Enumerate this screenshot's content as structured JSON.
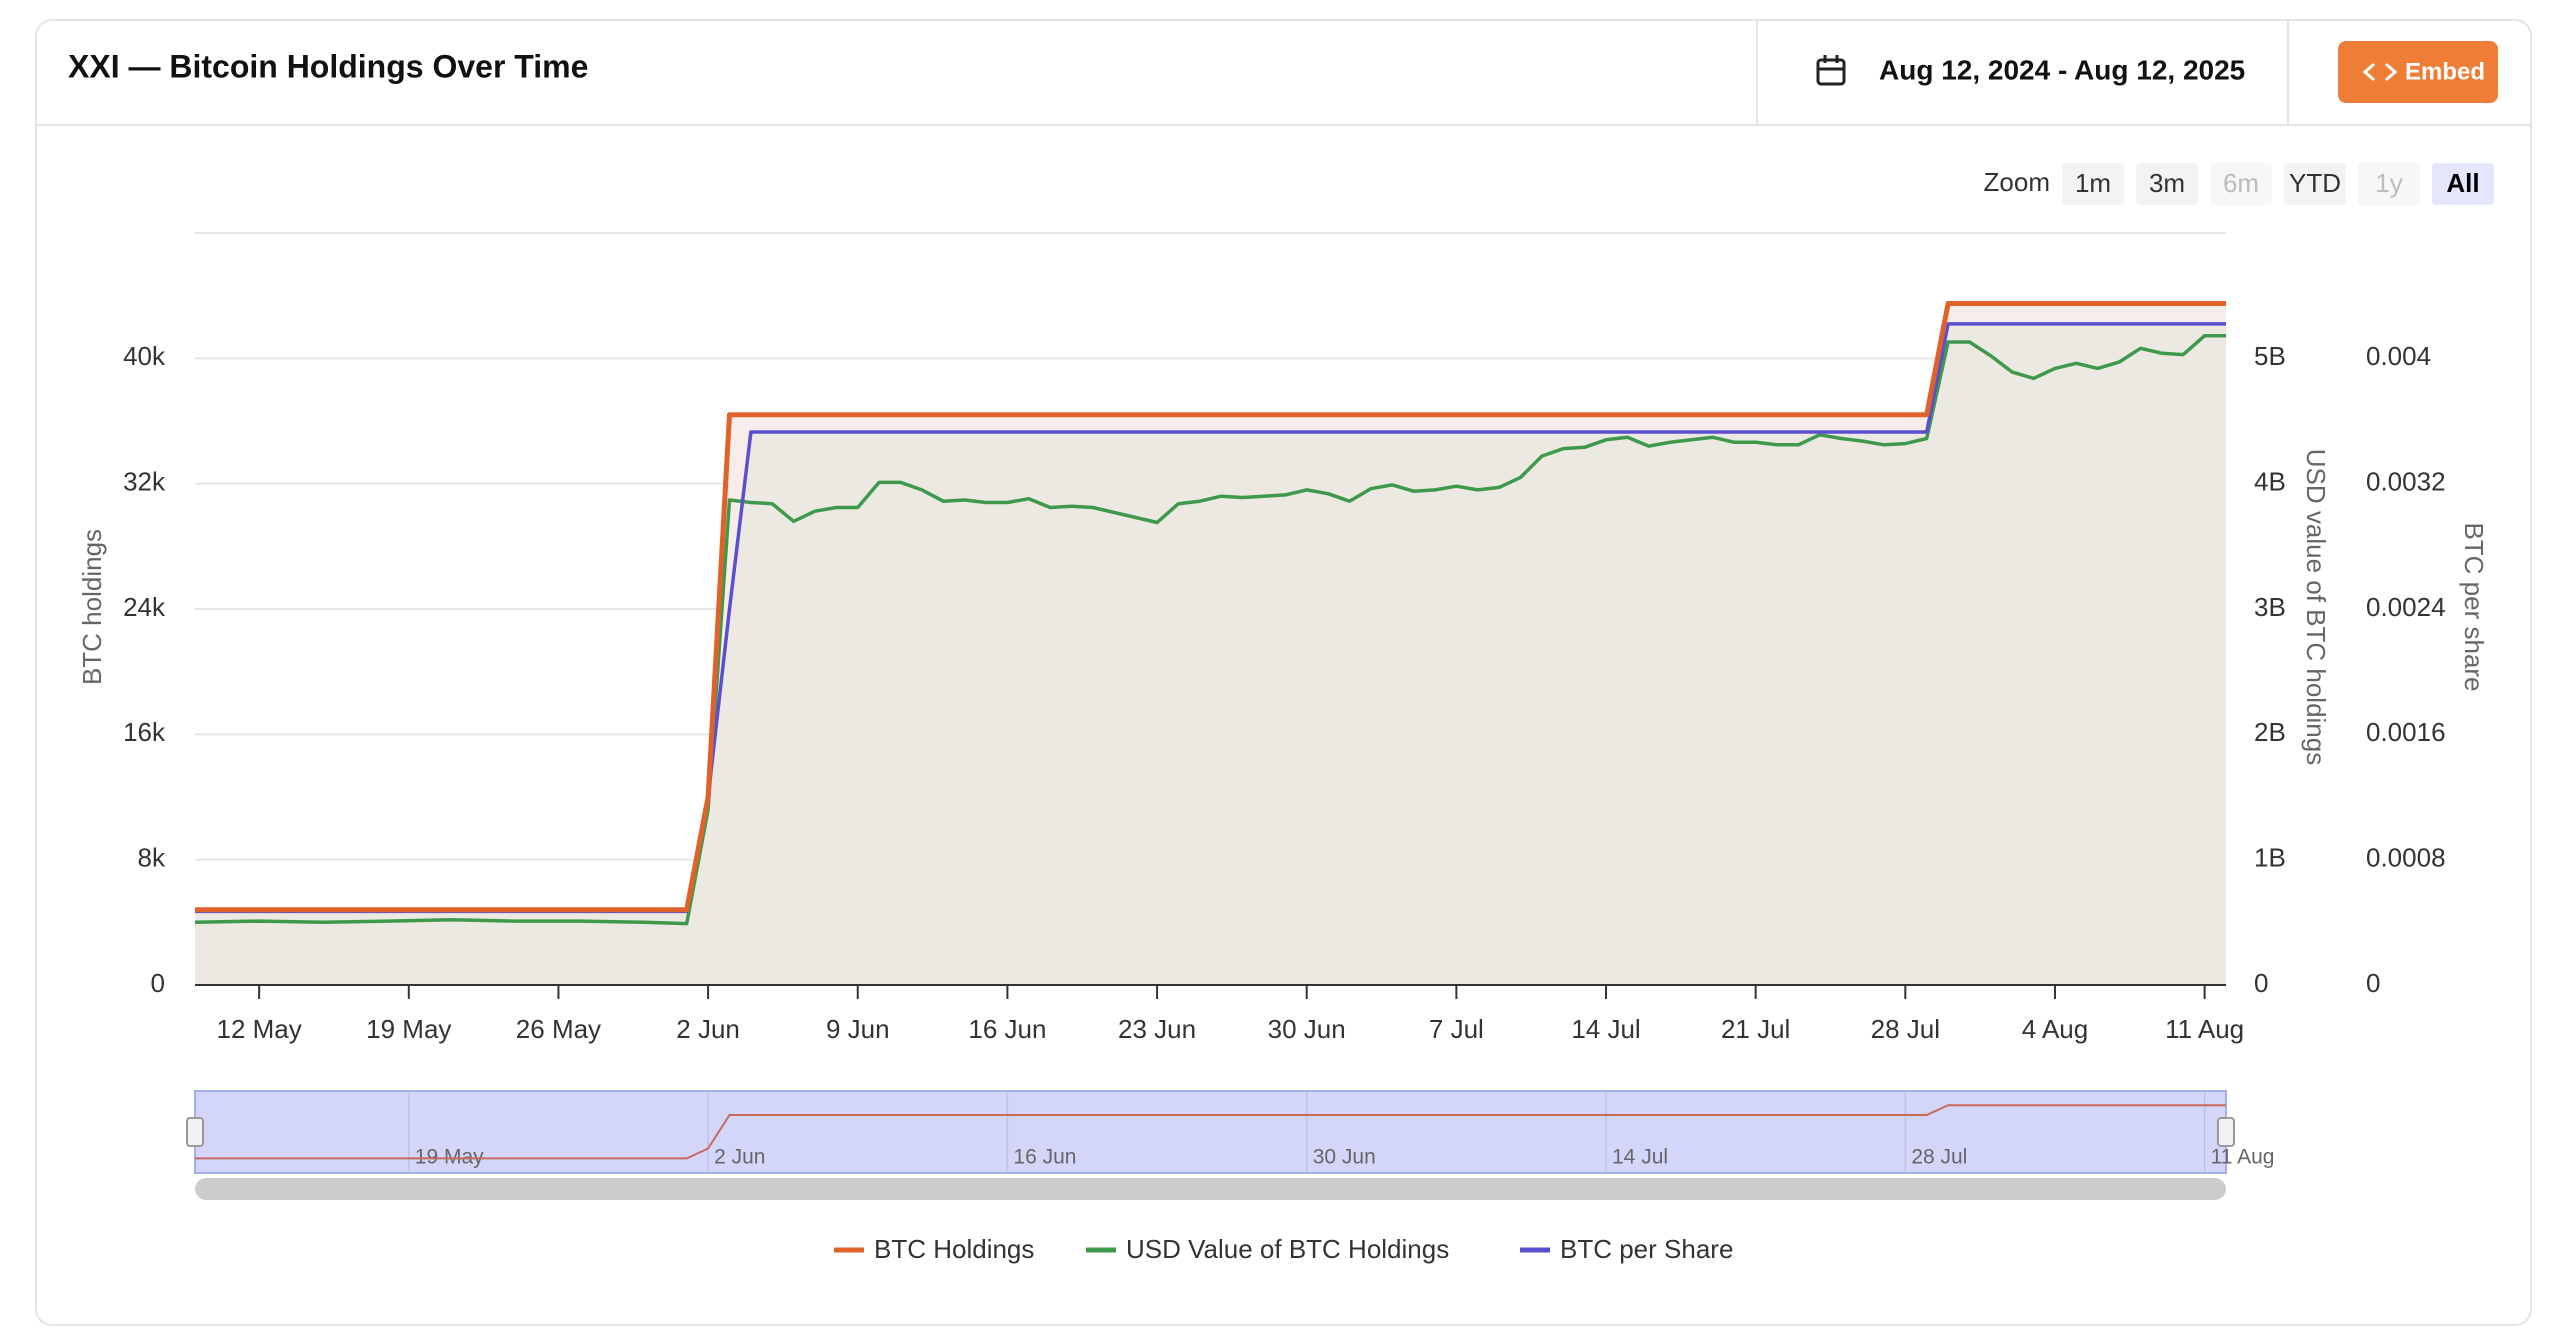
{
  "ui": {
    "date_range": "Aug 12, 2024 - Aug 12, 2025",
    "embed": "Embed",
    "zoom_label": "Zoom",
    "zoom_buttons": [
      "1m",
      "3m",
      "6m",
      "YTD",
      "1y",
      "All"
    ]
  },
  "chart_data": {
    "type": "line",
    "title": "XXI — Bitcoin Holdings Over Time",
    "y_label": "BTC holdings",
    "y2_label": "USD value of BTC holdings",
    "y3_label": "BTC per share",
    "x": [
      "9 May",
      "12 May",
      "15 May",
      "18 May",
      "21 May",
      "24 May",
      "27 May",
      "30 May",
      "1 Jun",
      "2 Jun",
      "3 Jun",
      "4 Jun",
      "5 Jun",
      "6 Jun",
      "7 Jun",
      "8 Jun",
      "9 Jun",
      "10 Jun",
      "11 Jun",
      "12 Jun",
      "13 Jun",
      "14 Jun",
      "15 Jun",
      "16 Jun",
      "17 Jun",
      "18 Jun",
      "19 Jun",
      "20 Jun",
      "21 Jun",
      "22 Jun",
      "23 Jun",
      "24 Jun",
      "25 Jun",
      "26 Jun",
      "27 Jun",
      "28 Jun",
      "29 Jun",
      "30 Jun",
      "1 Jul",
      "2 Jul",
      "3 Jul",
      "4 Jul",
      "5 Jul",
      "6 Jul",
      "7 Jul",
      "8 Jul",
      "9 Jul",
      "10 Jul",
      "11 Jul",
      "12 Jul",
      "13 Jul",
      "14 Jul",
      "15 Jul",
      "16 Jul",
      "17 Jul",
      "18 Jul",
      "19 Jul",
      "20 Jul",
      "21 Jul",
      "22 Jul",
      "23 Jul",
      "24 Jul",
      "25 Jul",
      "26 Jul",
      "27 Jul",
      "28 Jul",
      "29 Jul",
      "30 Jul",
      "31 Jul",
      "1 Aug",
      "2 Aug",
      "3 Aug",
      "4 Aug",
      "5 Aug",
      "6 Aug",
      "7 Aug",
      "8 Aug",
      "9 Aug",
      "10 Aug",
      "11 Aug",
      "12 Aug"
    ],
    "xlim": [
      "9 May",
      "12 Aug"
    ],
    "xticks": [
      "12 May",
      "19 May",
      "26 May",
      "2 Jun",
      "9 Jun",
      "16 Jun",
      "23 Jun",
      "30 Jun",
      "7 Jul",
      "14 Jul",
      "21 Jul",
      "28 Jul",
      "4 Aug",
      "11 Aug"
    ],
    "ylim": [
      0,
      48000
    ],
    "yticks": [
      0,
      {
        "value": 8000,
        "label": "8k"
      },
      {
        "value": 16000,
        "label": "16k"
      },
      {
        "value": 24000,
        "label": "24k"
      },
      {
        "value": 32000,
        "label": "32k"
      },
      {
        "value": 40000,
        "label": "40k"
      }
    ],
    "y2lim": [
      0,
      6000000000
    ],
    "y2ticks": [
      0,
      {
        "value": 1000000000,
        "label": "1B"
      },
      {
        "value": 2000000000,
        "label": "2B"
      },
      {
        "value": 3000000000,
        "label": "3B"
      },
      {
        "value": 4000000000,
        "label": "4B"
      },
      {
        "value": 5000000000,
        "label": "5B"
      }
    ],
    "y3lim": [
      0,
      0.0048
    ],
    "y3ticks": [
      0,
      0.0008,
      0.0016,
      0.0024,
      0.0032,
      0.004
    ],
    "grid": true,
    "legend": "bottom",
    "series": [
      {
        "name": "BTC Holdings",
        "color": "#e0622a",
        "area": "#f6ecea",
        "values": [
          4800,
          4800,
          4800,
          4800,
          4800,
          4800,
          4800,
          4800,
          4800,
          12000,
          36400,
          36400,
          36400,
          36400,
          36400,
          36400,
          36400,
          36400,
          36400,
          36400,
          36400,
          36400,
          36400,
          36400,
          36400,
          36400,
          36400,
          36400,
          36400,
          36400,
          36400,
          36400,
          36400,
          36400,
          36400,
          36400,
          36400,
          36400,
          36400,
          36400,
          36400,
          36400,
          36400,
          36400,
          36400,
          36400,
          36400,
          36400,
          36400,
          36400,
          36400,
          36400,
          36400,
          36400,
          36400,
          36400,
          36400,
          36400,
          36400,
          36400,
          36400,
          36400,
          36400,
          36400,
          36400,
          36400,
          36400,
          43500,
          43500,
          43500,
          43500,
          43500,
          43500,
          43500,
          43500,
          43500,
          43500,
          43500,
          43500,
          43500,
          43500
        ]
      },
      {
        "name": "USD Value of BTC Holdings",
        "color": "#3e9a4a",
        "axis": "y2",
        "values": [
          500000000,
          510000000,
          500000000,
          510000000,
          520000000,
          510000000,
          510000000,
          500000000,
          490000000,
          1400000000,
          3870000000,
          3850000000,
          3840000000,
          3700000000,
          3780000000,
          3810000000,
          3810000000,
          4010000000,
          4010000000,
          3950000000,
          3860000000,
          3870000000,
          3850000000,
          3850000000,
          3880000000,
          3810000000,
          3820000000,
          3810000000,
          3770000000,
          3730000000,
          3690000000,
          3840000000,
          3860000000,
          3900000000,
          3890000000,
          3900000000,
          3910000000,
          3950000000,
          3920000000,
          3860000000,
          3960000000,
          3990000000,
          3940000000,
          3950000000,
          3980000000,
          3950000000,
          3970000000,
          4050000000,
          4220000000,
          4280000000,
          4290000000,
          4350000000,
          4370000000,
          4300000000,
          4330000000,
          4350000000,
          4370000000,
          4330000000,
          4330000000,
          4310000000,
          4310000000,
          4390000000,
          4360000000,
          4340000000,
          4310000000,
          4320000000,
          4360000000,
          5130000000,
          5130000000,
          5020000000,
          4890000000,
          4840000000,
          4920000000,
          4960000000,
          4920000000,
          4970000000,
          5080000000,
          5040000000,
          5030000000,
          5180000000,
          5180000000
        ]
      },
      {
        "name": "BTC per Share",
        "color": "#5b4fcf",
        "axis": "y3",
        "area": "#ece9e2",
        "values": [
          0.00047,
          0.00047,
          0.00047,
          0.00047,
          0.00047,
          0.00047,
          0.00047,
          0.00047,
          0.00047,
          0.0012,
          0.0024,
          0.00353,
          0.00353,
          0.00353,
          0.00353,
          0.00353,
          0.00353,
          0.00353,
          0.00353,
          0.00353,
          0.00353,
          0.00353,
          0.00353,
          0.00353,
          0.00353,
          0.00353,
          0.00353,
          0.00353,
          0.00353,
          0.00353,
          0.00353,
          0.00353,
          0.00353,
          0.00353,
          0.00353,
          0.00353,
          0.00353,
          0.00353,
          0.00353,
          0.00353,
          0.00353,
          0.00353,
          0.00353,
          0.00353,
          0.00353,
          0.00353,
          0.00353,
          0.00353,
          0.00353,
          0.00353,
          0.00353,
          0.00353,
          0.00353,
          0.00353,
          0.00353,
          0.00353,
          0.00353,
          0.00353,
          0.00353,
          0.00353,
          0.00353,
          0.00353,
          0.00353,
          0.00353,
          0.00353,
          0.00353,
          0.00353,
          0.00422,
          0.00422,
          0.00422,
          0.00422,
          0.00422,
          0.00422,
          0.00422,
          0.00422,
          0.00422,
          0.00422,
          0.00422,
          0.00422,
          0.00422,
          0.00422
        ]
      }
    ]
  }
}
